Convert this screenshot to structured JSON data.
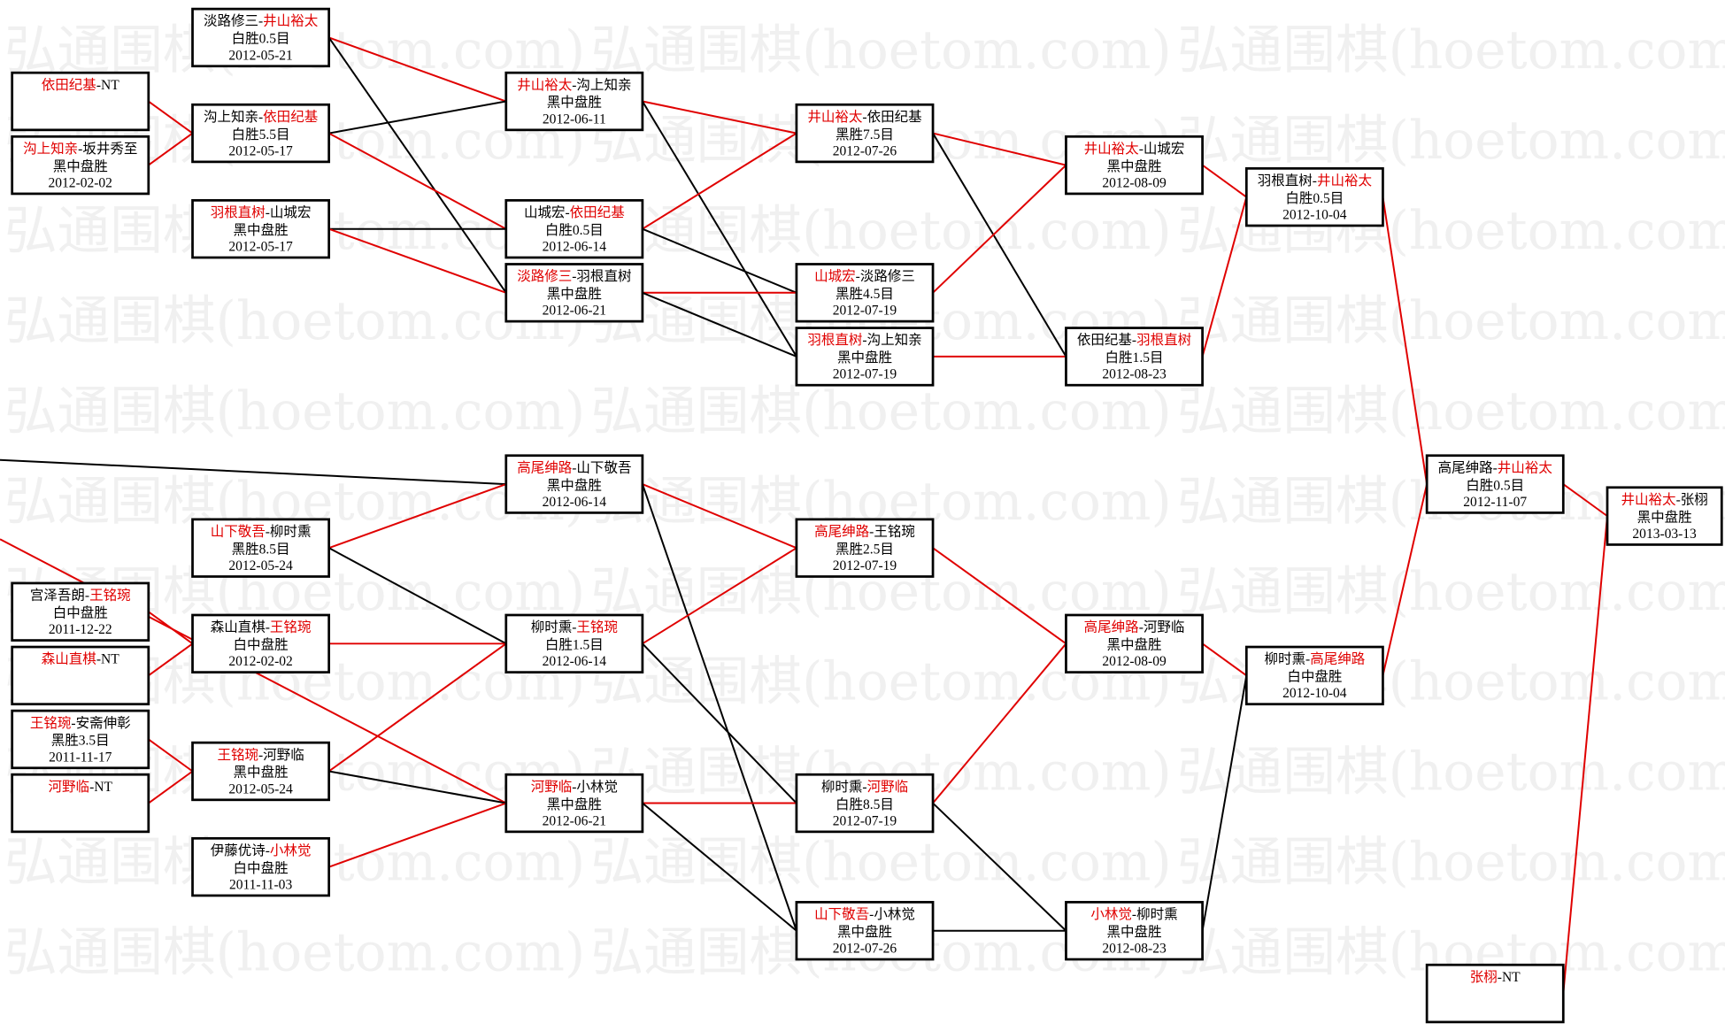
{
  "watermark": "弘通围棋(hoetom.com)",
  "colors": {
    "winner": "#e00000",
    "loser_line": "#000000",
    "box_border": "#000000",
    "watermark": "#f0f0f0"
  },
  "games": [
    {
      "id": "g1a",
      "players": [
        "依田纪基",
        "NT"
      ],
      "winner": 0,
      "result": "",
      "date": ""
    },
    {
      "id": "g1b",
      "players": [
        "沟上知亲",
        "坂井秀至"
      ],
      "winner": 0,
      "result": "黑中盘胜",
      "date": "2012-02-02"
    },
    {
      "id": "g1c",
      "players": [
        "宫泽吾朗",
        "王铭琬"
      ],
      "winner": 1,
      "result": "白中盘胜",
      "date": "2011-12-22"
    },
    {
      "id": "g1d",
      "players": [
        "森山直棋",
        "NT"
      ],
      "winner": 0,
      "result": "",
      "date": ""
    },
    {
      "id": "g1e",
      "players": [
        "王铭琬",
        "安斋伸彰"
      ],
      "winner": 0,
      "result": "黑胜3.5目",
      "date": "2011-11-17"
    },
    {
      "id": "g1f",
      "players": [
        "河野临",
        "NT"
      ],
      "winner": 0,
      "result": "",
      "date": ""
    },
    {
      "id": "g2a",
      "players": [
        "淡路修三",
        "井山裕太"
      ],
      "winner": 1,
      "result": "白胜0.5目",
      "date": "2012-05-21"
    },
    {
      "id": "g2b",
      "players": [
        "沟上知亲",
        "依田纪基"
      ],
      "winner": 1,
      "result": "白胜5.5目",
      "date": "2012-05-17"
    },
    {
      "id": "g2c",
      "players": [
        "羽根直树",
        "山城宏"
      ],
      "winner": 0,
      "result": "黑中盘胜",
      "date": "2012-05-17"
    },
    {
      "id": "g2d",
      "players": [
        "山下敬吾",
        "柳时熏"
      ],
      "winner": 0,
      "result": "黑胜8.5目",
      "date": "2012-05-24"
    },
    {
      "id": "g2e",
      "players": [
        "森山直棋",
        "王铭琬"
      ],
      "winner": 1,
      "result": "白中盘胜",
      "date": "2012-02-02"
    },
    {
      "id": "g2f",
      "players": [
        "王铭琬",
        "河野临"
      ],
      "winner": 0,
      "result": "黑中盘胜",
      "date": "2012-05-24"
    },
    {
      "id": "g2g",
      "players": [
        "伊藤优诗",
        "小林觉"
      ],
      "winner": 1,
      "result": "白中盘胜",
      "date": "2011-11-03"
    },
    {
      "id": "g3a",
      "players": [
        "井山裕太",
        "沟上知亲"
      ],
      "winner": 0,
      "result": "黑中盘胜",
      "date": "2012-06-11"
    },
    {
      "id": "g3b",
      "players": [
        "山城宏",
        "依田纪基"
      ],
      "winner": 1,
      "result": "白胜0.5目",
      "date": "2012-06-14"
    },
    {
      "id": "g3c",
      "players": [
        "淡路修三",
        "羽根直树"
      ],
      "winner": 0,
      "result": "黑中盘胜",
      "date": "2012-06-21"
    },
    {
      "id": "g3d",
      "players": [
        "高尾绅路",
        "山下敬吾"
      ],
      "winner": 0,
      "result": "黑中盘胜",
      "date": "2012-06-14"
    },
    {
      "id": "g3e",
      "players": [
        "柳时熏",
        "王铭琬"
      ],
      "winner": 1,
      "result": "白胜1.5目",
      "date": "2012-06-14"
    },
    {
      "id": "g3f",
      "players": [
        "河野临",
        "小林觉"
      ],
      "winner": 0,
      "result": "黑中盘胜",
      "date": "2012-06-21"
    },
    {
      "id": "g4a",
      "players": [
        "井山裕太",
        "依田纪基"
      ],
      "winner": 0,
      "result": "黑胜7.5目",
      "date": "2012-07-26"
    },
    {
      "id": "g4b",
      "players": [
        "山城宏",
        "淡路修三"
      ],
      "winner": 0,
      "result": "黑胜4.5目",
      "date": "2012-07-19"
    },
    {
      "id": "g4c",
      "players": [
        "羽根直树",
        "沟上知亲"
      ],
      "winner": 0,
      "result": "黑中盘胜",
      "date": "2012-07-19"
    },
    {
      "id": "g4d",
      "players": [
        "高尾绅路",
        "王铭琬"
      ],
      "winner": 0,
      "result": "黑胜2.5目",
      "date": "2012-07-19"
    },
    {
      "id": "g4e",
      "players": [
        "柳时熏",
        "河野临"
      ],
      "winner": 1,
      "result": "白胜8.5目",
      "date": "2012-07-19"
    },
    {
      "id": "g4f",
      "players": [
        "山下敬吾",
        "小林觉"
      ],
      "winner": 0,
      "result": "黑中盘胜",
      "date": "2012-07-26"
    },
    {
      "id": "g5a",
      "players": [
        "井山裕太",
        "山城宏"
      ],
      "winner": 0,
      "result": "黑中盘胜",
      "date": "2012-08-09"
    },
    {
      "id": "g5b",
      "players": [
        "依田纪基",
        "羽根直树"
      ],
      "winner": 1,
      "result": "白胜1.5目",
      "date": "2012-08-23"
    },
    {
      "id": "g5c",
      "players": [
        "高尾绅路",
        "河野临"
      ],
      "winner": 0,
      "result": "黑中盘胜",
      "date": "2012-08-09"
    },
    {
      "id": "g5d",
      "players": [
        "小林觉",
        "柳时熏"
      ],
      "winner": 0,
      "result": "黑中盘胜",
      "date": "2012-08-23"
    },
    {
      "id": "g6a",
      "players": [
        "羽根直树",
        "井山裕太"
      ],
      "winner": 1,
      "result": "白胜0.5目",
      "date": "2012-10-04"
    },
    {
      "id": "g6b",
      "players": [
        "柳时熏",
        "高尾绅路"
      ],
      "winner": 1,
      "result": "白中盘胜",
      "date": "2012-10-04"
    },
    {
      "id": "g7a",
      "players": [
        "高尾绅路",
        "井山裕太"
      ],
      "winner": 1,
      "result": "白胜0.5目",
      "date": "2012-11-07"
    },
    {
      "id": "g7b",
      "players": [
        "张栩",
        "NT"
      ],
      "winner": 0,
      "result": "",
      "date": ""
    },
    {
      "id": "g8",
      "players": [
        "井山裕太",
        "张栩"
      ],
      "winner": 0,
      "result": "黑中盘胜",
      "date": "2013-03-13"
    }
  ],
  "links": [
    [
      "g1a",
      "g2b",
      1
    ],
    [
      "g1b",
      "g2b",
      1
    ],
    [
      "g2a",
      "g3a",
      1
    ],
    [
      "g2a",
      "g3c",
      0
    ],
    [
      "g2b",
      "g3a",
      0
    ],
    [
      "g2b",
      "g3b",
      1
    ],
    [
      "g2c",
      "g3b",
      0
    ],
    [
      "g2c",
      "g3c",
      1
    ],
    [
      "g3a",
      "g4a",
      1
    ],
    [
      "g3a",
      "g4c",
      0
    ],
    [
      "g3b",
      "g4a",
      1
    ],
    [
      "g3b",
      "g4b",
      0
    ],
    [
      "g3c",
      "g4b",
      1
    ],
    [
      "g3c",
      "g4c",
      0
    ],
    [
      "g4a",
      "g5a",
      1
    ],
    [
      "g4a",
      "g5b",
      0
    ],
    [
      "g4b",
      "g5a",
      1
    ],
    [
      "g4c",
      "g5b",
      1
    ],
    [
      "g5a",
      "g6a",
      1
    ],
    [
      "g5b",
      "g6a",
      1
    ],
    [
      "g6a",
      "g7a",
      1
    ],
    [
      "g6b",
      "g7a",
      1
    ],
    [
      "g7a",
      "g8",
      1
    ],
    [
      "g7b",
      "g8",
      1
    ],
    [
      "offA",
      "g3d",
      0
    ],
    [
      "offB",
      "g3f",
      1
    ],
    [
      "g1c",
      "g2e",
      1
    ],
    [
      "g1d",
      "g2e",
      1
    ],
    [
      "g1e",
      "g2f",
      1
    ],
    [
      "g1f",
      "g2f",
      1
    ],
    [
      "g2d",
      "g3d",
      1
    ],
    [
      "g2d",
      "g3e",
      0
    ],
    [
      "g2e",
      "g3e",
      1
    ],
    [
      "g2f",
      "g3e",
      1
    ],
    [
      "g2f",
      "g3f",
      0
    ],
    [
      "g2g",
      "g3f",
      1
    ],
    [
      "g3d",
      "g4d",
      1
    ],
    [
      "g3d",
      "g4f",
      0
    ],
    [
      "g3e",
      "g4d",
      1
    ],
    [
      "g3e",
      "g4e",
      0
    ],
    [
      "g3f",
      "g4e",
      1
    ],
    [
      "g3f",
      "g4f",
      0
    ],
    [
      "g4d",
      "g5c",
      1
    ],
    [
      "g4e",
      "g5c",
      1
    ],
    [
      "g4e",
      "g5d",
      0
    ],
    [
      "g4f",
      "g5d",
      0
    ],
    [
      "g5c",
      "g6b",
      1
    ],
    [
      "g5d",
      "g6b",
      0
    ]
  ]
}
